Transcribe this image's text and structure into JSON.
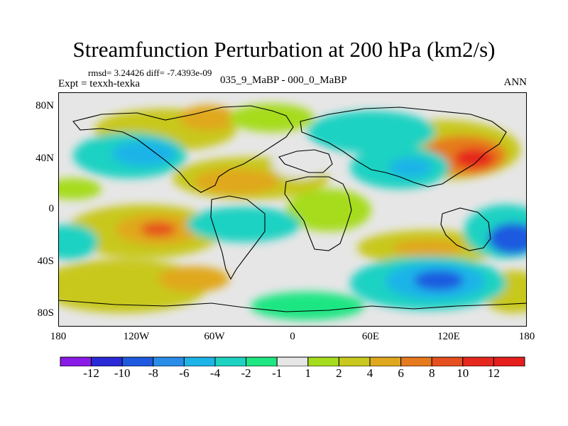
{
  "title": "Streamfunction Perturbation at 200 hPa (km2/s)",
  "stats": "rmsd= 3.24426 diff= -7.4393e-09",
  "expt_label": "Expt = texxh-texka",
  "experiment": "035_9_MaBP - 000_0_MaBP",
  "season": "ANN",
  "y_axis_labels": [
    "80N",
    "40N",
    "0",
    "40S",
    "80S"
  ],
  "x_axis_labels": [
    "180",
    "120W",
    "60W",
    "0",
    "60E",
    "120E",
    "180"
  ],
  "colorbar": {
    "labels": [
      "-12",
      "-10",
      "-8",
      "-6",
      "-4",
      "-2",
      "-1",
      "1",
      "2",
      "4",
      "6",
      "8",
      "10",
      "12"
    ],
    "colors": [
      "#8a1ae6",
      "#2a2ad6",
      "#1e5ae0",
      "#2a8ee8",
      "#1eb4e8",
      "#1ed2c2",
      "#1ee682",
      "#e6e6e6",
      "#a6dc1e",
      "#c8c81e",
      "#e0a81e",
      "#e67a1e",
      "#e6501e",
      "#e6281e",
      "#e61e1e"
    ]
  }
}
